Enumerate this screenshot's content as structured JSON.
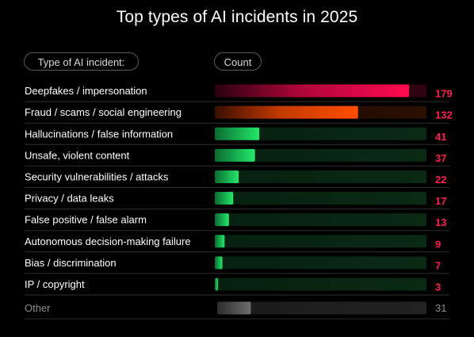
{
  "header": {
    "title": "Top types of AI incidents in 2025",
    "type_label": "Type of AI incident:",
    "count_label": "Count"
  },
  "colors": {
    "top1": "#ff0a4e",
    "top2": "#ff4d00",
    "green": "#22e86a",
    "value_red": "#ff1f4f",
    "other_value": "#8c8c8c",
    "other_label": "#8c8c8c"
  },
  "chart_data": {
    "type": "bar",
    "orientation": "horizontal",
    "title": "Top types of AI incidents in 2025",
    "xlabel": "Count",
    "ylabel": "Type of AI incident:",
    "xlim": [
      0,
      195
    ],
    "categories": [
      "Deepfakes / impersonation",
      "Fraud / scams / social engineering",
      "Hallucinations / false information",
      "Unsafe, violent content",
      "Security vulnerabilities / attacks",
      "Privacy / data leaks",
      "False positive / false alarm",
      "Autonomous decision-making failure",
      "Bias / discrimination",
      "IP / copyright",
      "Other"
    ],
    "values": [
      179,
      132,
      41,
      37,
      22,
      17,
      13,
      9,
      7,
      3,
      31
    ]
  }
}
